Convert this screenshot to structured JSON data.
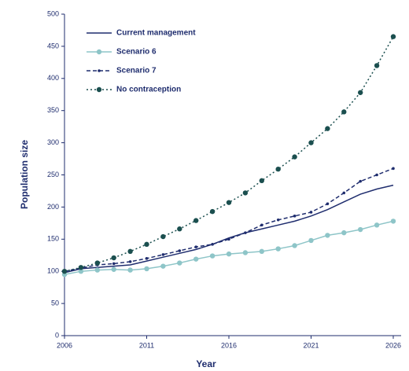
{
  "chart_data": {
    "type": "line",
    "x_label": "Year",
    "y_label": "Population size",
    "x": [
      2006,
      2007,
      2008,
      2009,
      2010,
      2011,
      2012,
      2013,
      2014,
      2015,
      2016,
      2017,
      2018,
      2019,
      2020,
      2021,
      2022,
      2023,
      2024,
      2025,
      2026
    ],
    "xlim": [
      2006,
      2026
    ],
    "xticks": [
      2006,
      2011,
      2016,
      2021,
      2026
    ],
    "ylim": [
      0,
      500
    ],
    "yticks": [
      0,
      50,
      100,
      150,
      200,
      250,
      300,
      350,
      400,
      450,
      500
    ],
    "legend": "upper left",
    "series": [
      {
        "name": "Current management",
        "color": "#1f2d6e",
        "marker": "none",
        "dash": "none",
        "values": [
          98,
          104,
          106,
          108,
          110,
          116,
          122,
          128,
          134,
          142,
          152,
          160,
          166,
          172,
          178,
          186,
          196,
          208,
          220,
          228,
          234
        ]
      },
      {
        "name": "Scenario 6",
        "color": "#8ec5c8",
        "marker": "circle",
        "dash": "none",
        "values": [
          95,
          100,
          102,
          103,
          102,
          104,
          108,
          113,
          119,
          124,
          127,
          129,
          131,
          135,
          140,
          148,
          156,
          160,
          165,
          172,
          178
        ]
      },
      {
        "name": "Scenario 7",
        "color": "#1f2d6e",
        "marker": "small",
        "dash": "5 3",
        "values": [
          100,
          105,
          110,
          112,
          115,
          120,
          126,
          132,
          138,
          142,
          150,
          160,
          172,
          180,
          186,
          192,
          205,
          222,
          240,
          250,
          260
        ]
      },
      {
        "name": "No contraception",
        "color": "#1b4f4f",
        "marker": "circle",
        "dash": "2 3",
        "values": [
          100,
          106,
          113,
          121,
          131,
          142,
          154,
          166,
          179,
          193,
          207,
          222,
          241,
          259,
          278,
          300,
          322,
          348,
          378,
          420,
          465
        ]
      }
    ]
  }
}
